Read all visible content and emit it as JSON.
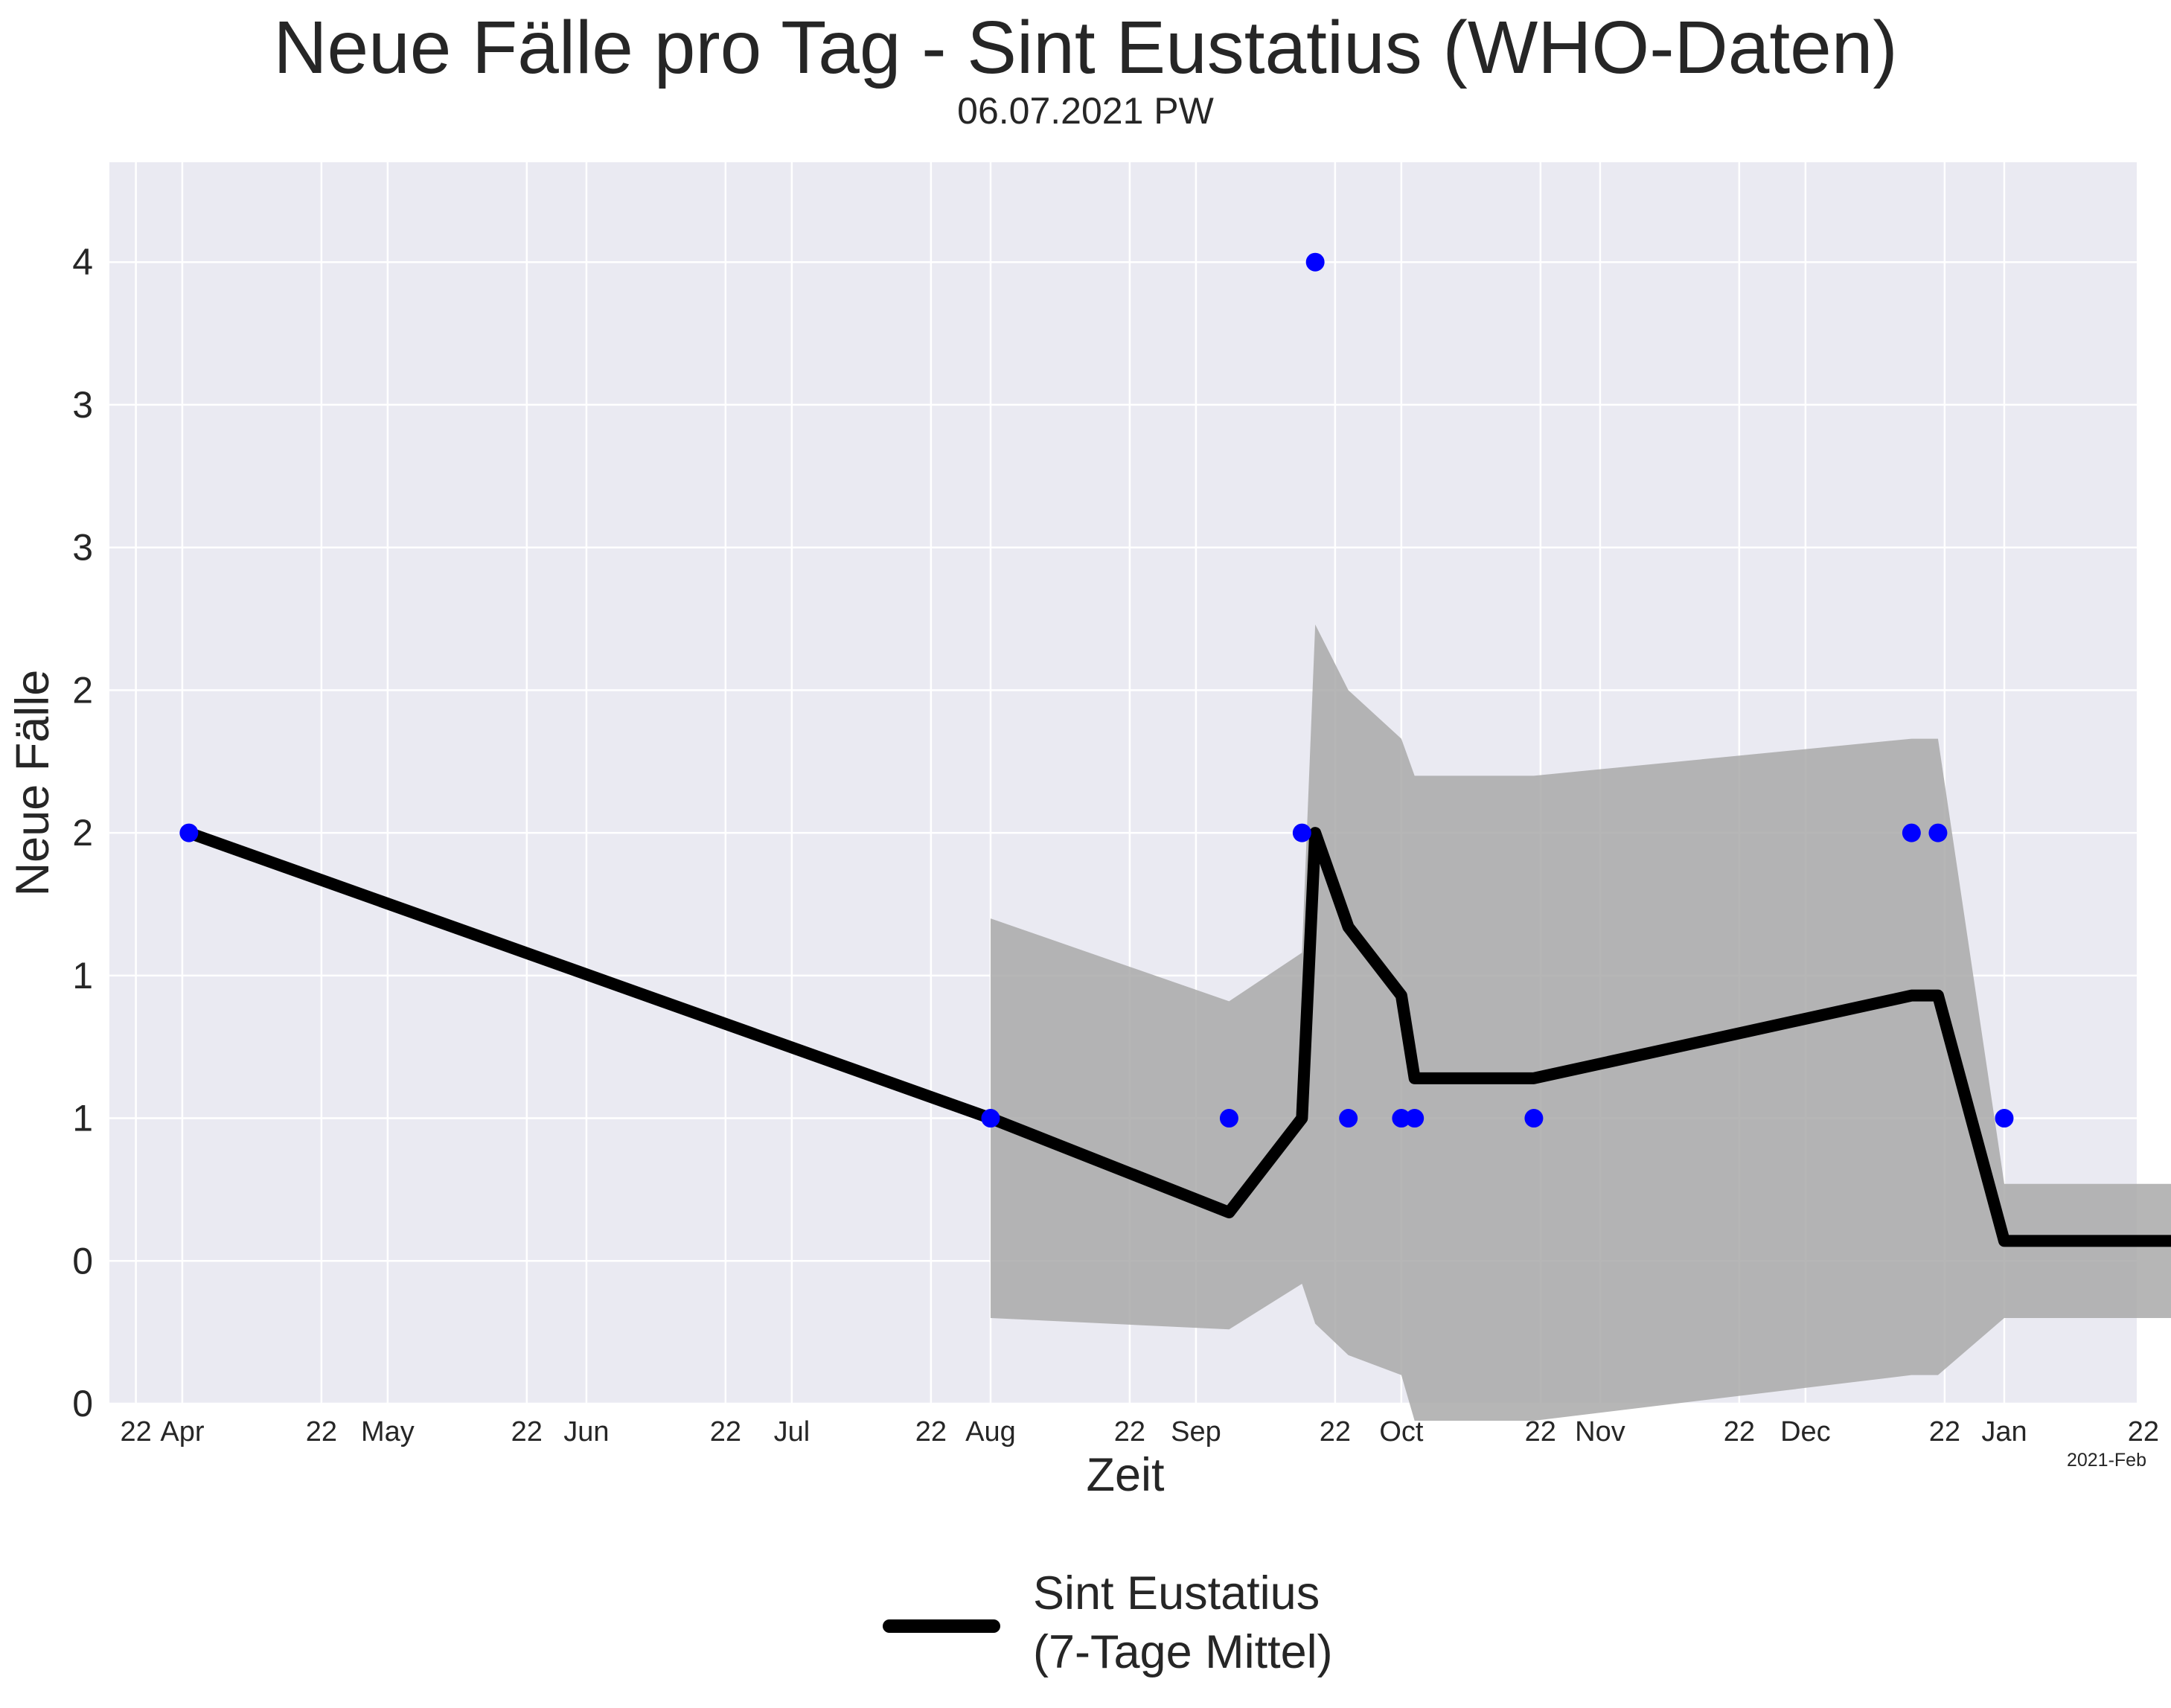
{
  "chart_data": {
    "type": "line",
    "title": "Neue Fälle pro Tag - Sint Eustatius (WHO-Daten)",
    "subtitle": "06.07.2021 PW",
    "xlabel": "Zeit",
    "ylabel": "Neue Fälle",
    "x_axis_type": "date",
    "xlim": [
      "2021-02-18",
      "2021-12-21"
    ],
    "ylim": [
      0,
      4.35
    ],
    "y_ticks": [
      {
        "value": 0,
        "label": "0"
      },
      {
        "value": 0.5,
        "label": "0"
      },
      {
        "value": 1,
        "label": "1"
      },
      {
        "value": 1.5,
        "label": "1"
      },
      {
        "value": 2,
        "label": "2"
      },
      {
        "value": 2.5,
        "label": "2"
      },
      {
        "value": 3,
        "label": "3"
      },
      {
        "value": 3.5,
        "label": "3"
      },
      {
        "value": 4,
        "label": "4"
      }
    ],
    "x_ticks": [
      {
        "date": "2021-02-22",
        "label": "22"
      },
      {
        "date": "2021-03-01",
        "label": "Apr"
      },
      {
        "date": "2021-03-22",
        "label": "22"
      },
      {
        "date": "2021-04-01",
        "label": "May"
      },
      {
        "date": "2021-04-22",
        "label": "22"
      },
      {
        "date": "2021-05-01",
        "label": "Jun"
      },
      {
        "date": "2021-05-22",
        "label": "22"
      },
      {
        "date": "2021-06-01",
        "label": "Jul"
      },
      {
        "date": "2021-06-22",
        "label": "22"
      },
      {
        "date": "2021-07-01",
        "label": "Aug"
      },
      {
        "date": "2021-07-22",
        "label": "22"
      },
      {
        "date": "2021-08-01",
        "label": "Sep"
      },
      {
        "date": "2021-08-22",
        "label": "22"
      },
      {
        "date": "2021-09-01",
        "label": "Oct"
      },
      {
        "date": "2021-09-22",
        "label": "22"
      },
      {
        "date": "2021-10-01",
        "label": "Nov"
      },
      {
        "date": "2021-10-22",
        "label": "22"
      },
      {
        "date": "2021-11-01",
        "label": "Dec"
      },
      {
        "date": "2021-11-22",
        "label": "22"
      },
      {
        "date": "2021-12-01",
        "label": "Jan"
      },
      {
        "date": "2021-12-22",
        "label": "22"
      },
      {
        "date": "2022-01-01",
        "label": "Feb"
      }
    ],
    "x_offset_label": "2021-Feb",
    "grid": true,
    "legend_position": "bottom-center",
    "series": [
      {
        "name": "Sint Eustatius\n(7-Tage Mittel)",
        "kind": "line",
        "color": "#000000",
        "points": [
          {
            "x": "2021-03-02",
            "y": 2.0
          },
          {
            "x": "2021-07-01",
            "y": 1.0
          },
          {
            "x": "2021-08-06",
            "y": 0.67
          },
          {
            "x": "2021-08-17",
            "y": 1.0
          },
          {
            "x": "2021-08-19",
            "y": 2.0
          },
          {
            "x": "2021-08-24",
            "y": 1.67
          },
          {
            "x": "2021-09-01",
            "y": 1.43
          },
          {
            "x": "2021-09-03",
            "y": 1.14
          },
          {
            "x": "2021-09-21",
            "y": 1.14
          },
          {
            "x": "2021-11-17",
            "y": 1.43
          },
          {
            "x": "2021-11-21",
            "y": 1.43
          },
          {
            "x": "2021-12-01",
            "y": 0.57
          },
          {
            "x": "2021-12-29",
            "y": 0.57
          }
        ]
      },
      {
        "name": "",
        "kind": "scatter",
        "color": "#0000ff",
        "points": [
          {
            "x": "2021-03-02",
            "y": 2
          },
          {
            "x": "2021-07-01",
            "y": 1
          },
          {
            "x": "2021-08-06",
            "y": 1
          },
          {
            "x": "2021-08-17",
            "y": 2
          },
          {
            "x": "2021-08-19",
            "y": 4
          },
          {
            "x": "2021-08-24",
            "y": 1
          },
          {
            "x": "2021-09-01",
            "y": 1
          },
          {
            "x": "2021-09-03",
            "y": 1
          },
          {
            "x": "2021-09-21",
            "y": 1
          },
          {
            "x": "2021-11-17",
            "y": 2
          },
          {
            "x": "2021-11-21",
            "y": 2
          },
          {
            "x": "2021-12-01",
            "y": 1
          },
          {
            "x": "2021-12-29",
            "y": 1
          }
        ]
      }
    ],
    "band": {
      "color": "#a9a9a9",
      "points": [
        {
          "x": "2021-07-01",
          "lower": 0.3,
          "upper": 1.7
        },
        {
          "x": "2021-08-06",
          "lower": 0.26,
          "upper": 1.41
        },
        {
          "x": "2021-08-17",
          "lower": 0.42,
          "upper": 1.58
        },
        {
          "x": "2021-08-19",
          "lower": 0.28,
          "upper": 2.73
        },
        {
          "x": "2021-08-24",
          "lower": 0.17,
          "upper": 2.5
        },
        {
          "x": "2021-09-01",
          "lower": 0.1,
          "upper": 2.33
        },
        {
          "x": "2021-09-03",
          "lower": -0.06,
          "upper": 2.2
        },
        {
          "x": "2021-09-21",
          "lower": -0.06,
          "upper": 2.2
        },
        {
          "x": "2021-11-17",
          "lower": 0.1,
          "upper": 2.33
        },
        {
          "x": "2021-11-21",
          "lower": 0.1,
          "upper": 2.33
        },
        {
          "x": "2021-12-01",
          "lower": 0.3,
          "upper": 0.77
        },
        {
          "x": "2021-12-29",
          "lower": 0.3,
          "upper": 0.77
        }
      ]
    }
  },
  "legend": {
    "line1": "Sint Eustatius",
    "line2": "(7-Tage Mittel)",
    "color": "#000000"
  }
}
